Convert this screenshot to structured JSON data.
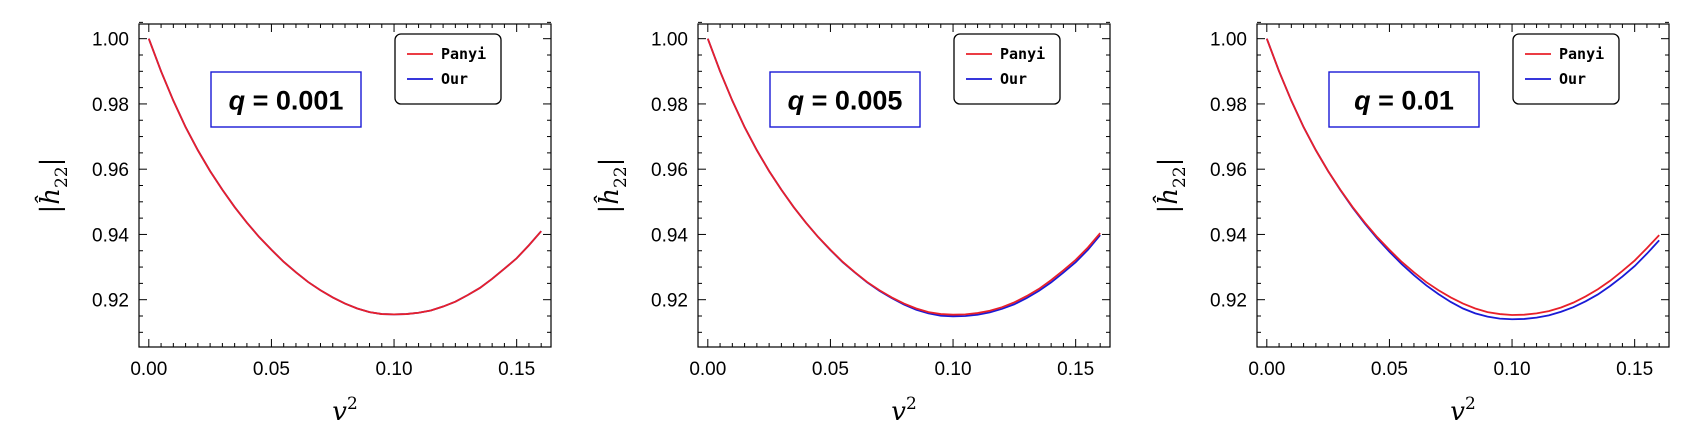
{
  "chart_data": [
    {
      "type": "line",
      "annotation": {
        "var": "q",
        "text": " = 0.001"
      },
      "xlabel": {
        "base": "v",
        "sup": "2"
      },
      "ylabel": {
        "base": "|ĥ",
        "sub": "22",
        "close": "|"
      },
      "xlim": [
        -0.004,
        0.164
      ],
      "ylim": [
        0.9055,
        1.0045
      ],
      "xticks": [
        "0.00",
        "0.05",
        "0.10",
        "0.15"
      ],
      "yticks": [
        "0.92",
        "0.94",
        "0.96",
        "0.98",
        "1.00"
      ],
      "x": [
        0,
        0.005,
        0.01,
        0.015,
        0.02,
        0.025,
        0.03,
        0.035,
        0.04,
        0.045,
        0.05,
        0.055,
        0.06,
        0.065,
        0.07,
        0.075,
        0.08,
        0.085,
        0.09,
        0.095,
        0.1,
        0.105,
        0.11,
        0.115,
        0.12,
        0.125,
        0.13,
        0.135,
        0.14,
        0.145,
        0.15,
        0.155,
        0.16
      ],
      "series": [
        {
          "name": "Panyi",
          "color": "#e8202a",
          "values": [
            1.0,
            0.99,
            0.981,
            0.9729,
            0.9658,
            0.9594,
            0.9537,
            0.9484,
            0.9436,
            0.9392,
            0.9353,
            0.9316,
            0.9284,
            0.9254,
            0.9229,
            0.9207,
            0.9188,
            0.9173,
            0.9162,
            0.9156,
            0.9155,
            0.9156,
            0.916,
            0.9167,
            0.9179,
            0.9194,
            0.9214,
            0.9236,
            0.9264,
            0.9295,
            0.9327,
            0.9367,
            0.941
          ]
        },
        {
          "name": "Our",
          "color": "#1a1ad6",
          "values": [
            1.0,
            0.99,
            0.981,
            0.9729,
            0.9658,
            0.9594,
            0.9537,
            0.9484,
            0.9436,
            0.9392,
            0.9353,
            0.9316,
            0.9284,
            0.9254,
            0.9229,
            0.9207,
            0.9188,
            0.9173,
            0.9162,
            0.9156,
            0.9155,
            0.9156,
            0.916,
            0.9167,
            0.9179,
            0.9194,
            0.9214,
            0.9236,
            0.9264,
            0.9295,
            0.9327,
            0.9367,
            0.941
          ]
        }
      ]
    },
    {
      "type": "line",
      "annotation": {
        "var": "q",
        "text": " = 0.005"
      },
      "xlabel": {
        "base": "v",
        "sup": "2"
      },
      "ylabel": {
        "base": "|ĥ",
        "sub": "22",
        "close": "|"
      },
      "xlim": [
        -0.004,
        0.164
      ],
      "ylim": [
        0.9055,
        1.0045
      ],
      "xticks": [
        "0.00",
        "0.05",
        "0.10",
        "0.15"
      ],
      "yticks": [
        "0.92",
        "0.94",
        "0.96",
        "0.98",
        "1.00"
      ],
      "x": [
        0,
        0.005,
        0.01,
        0.015,
        0.02,
        0.025,
        0.03,
        0.035,
        0.04,
        0.045,
        0.05,
        0.055,
        0.06,
        0.065,
        0.07,
        0.075,
        0.08,
        0.085,
        0.09,
        0.095,
        0.1,
        0.105,
        0.11,
        0.115,
        0.12,
        0.125,
        0.13,
        0.135,
        0.14,
        0.145,
        0.15,
        0.155,
        0.16
      ],
      "series": [
        {
          "name": "Panyi",
          "color": "#e8202a",
          "values": [
            1.0,
            0.99,
            0.981,
            0.9729,
            0.9658,
            0.9594,
            0.9537,
            0.9484,
            0.9436,
            0.9392,
            0.9353,
            0.9316,
            0.9284,
            0.9254,
            0.9229,
            0.9207,
            0.9188,
            0.9173,
            0.9162,
            0.9156,
            0.9154,
            0.9155,
            0.9159,
            0.9166,
            0.9177,
            0.9192,
            0.9211,
            0.9233,
            0.926,
            0.929,
            0.9322,
            0.936,
            0.9404
          ]
        },
        {
          "name": "Our",
          "color": "#1a1ad6",
          "values": [
            1.0,
            0.99,
            0.981,
            0.9729,
            0.9658,
            0.9594,
            0.9537,
            0.9484,
            0.9436,
            0.9392,
            0.9352,
            0.9315,
            0.9283,
            0.9253,
            0.9227,
            0.9205,
            0.9185,
            0.9169,
            0.9158,
            0.9151,
            0.9149,
            0.915,
            0.9154,
            0.9161,
            0.9172,
            0.9186,
            0.9205,
            0.9227,
            0.9253,
            0.9283,
            0.9315,
            0.9353,
            0.9398
          ]
        }
      ]
    },
    {
      "type": "line",
      "annotation": {
        "var": "q",
        "text": " = 0.01"
      },
      "xlabel": {
        "base": "v",
        "sup": "2"
      },
      "ylabel": {
        "base": "|ĥ",
        "sub": "22",
        "close": "|"
      },
      "xlim": [
        -0.004,
        0.164
      ],
      "ylim": [
        0.9055,
        1.0045
      ],
      "xticks": [
        "0.00",
        "0.05",
        "0.10",
        "0.15"
      ],
      "yticks": [
        "0.92",
        "0.94",
        "0.96",
        "0.98",
        "1.00"
      ],
      "x": [
        0,
        0.005,
        0.01,
        0.015,
        0.02,
        0.025,
        0.03,
        0.035,
        0.04,
        0.045,
        0.05,
        0.055,
        0.06,
        0.065,
        0.07,
        0.075,
        0.08,
        0.085,
        0.09,
        0.095,
        0.1,
        0.105,
        0.11,
        0.115,
        0.12,
        0.125,
        0.13,
        0.135,
        0.14,
        0.145,
        0.15,
        0.155,
        0.16
      ],
      "series": [
        {
          "name": "Panyi",
          "color": "#e8202a",
          "values": [
            1.0,
            0.99,
            0.981,
            0.9729,
            0.9658,
            0.9594,
            0.9537,
            0.9484,
            0.9436,
            0.9392,
            0.9353,
            0.9316,
            0.9284,
            0.9254,
            0.9229,
            0.9207,
            0.9188,
            0.9173,
            0.9162,
            0.9156,
            0.9153,
            0.9154,
            0.9158,
            0.9165,
            0.9176,
            0.9191,
            0.921,
            0.9232,
            0.9258,
            0.9288,
            0.932,
            0.9358,
            0.9398
          ]
        },
        {
          "name": "Our",
          "color": "#1a1ad6",
          "values": [
            1.0,
            0.99,
            0.981,
            0.9729,
            0.9658,
            0.9594,
            0.9536,
            0.9482,
            0.9433,
            0.9388,
            0.9347,
            0.9309,
            0.9275,
            0.9244,
            0.9217,
            0.9193,
            0.9173,
            0.9158,
            0.9148,
            0.9142,
            0.914,
            0.9141,
            0.9145,
            0.9152,
            0.9163,
            0.9177,
            0.9195,
            0.9216,
            0.9242,
            0.9271,
            0.9303,
            0.9341,
            0.9382
          ]
        }
      ]
    }
  ]
}
